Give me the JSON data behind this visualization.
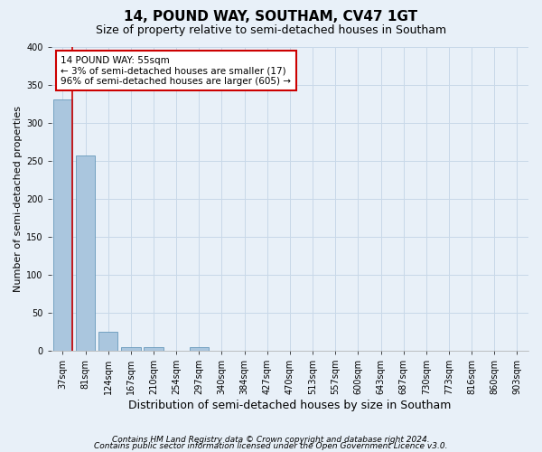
{
  "title": "14, POUND WAY, SOUTHAM, CV47 1GT",
  "subtitle": "Size of property relative to semi-detached houses in Southam",
  "xlabel": "Distribution of semi-detached houses by size in Southam",
  "ylabel": "Number of semi-detached properties",
  "footnote1": "Contains HM Land Registry data © Crown copyright and database right 2024.",
  "footnote2": "Contains public sector information licensed under the Open Government Licence v3.0.",
  "annotation_title": "14 POUND WAY: 55sqm",
  "annotation_line1": "← 3% of semi-detached houses are smaller (17)",
  "annotation_line2": "96% of semi-detached houses are larger (605) →",
  "bar_labels": [
    "37sqm",
    "81sqm",
    "124sqm",
    "167sqm",
    "210sqm",
    "254sqm",
    "297sqm",
    "340sqm",
    "384sqm",
    "427sqm",
    "470sqm",
    "513sqm",
    "557sqm",
    "600sqm",
    "643sqm",
    "687sqm",
    "730sqm",
    "773sqm",
    "816sqm",
    "860sqm",
    "903sqm"
  ],
  "bar_values": [
    330,
    257,
    25,
    5,
    5,
    0,
    5,
    0,
    0,
    0,
    0,
    0,
    0,
    0,
    0,
    0,
    0,
    0,
    0,
    0,
    0
  ],
  "bar_color": "#aac6de",
  "bar_edge_color": "#6699bb",
  "vline_x": 0.42,
  "ylim": [
    0,
    400
  ],
  "yticks": [
    0,
    50,
    100,
    150,
    200,
    250,
    300,
    350,
    400
  ],
  "grid_color": "#c8d8e8",
  "background_color": "#e8f0f8",
  "vline_color": "#cc0000",
  "box_color": "#cc0000",
  "title_fontsize": 11,
  "subtitle_fontsize": 9,
  "xlabel_fontsize": 9,
  "ylabel_fontsize": 8,
  "tick_fontsize": 7,
  "annotation_fontsize": 7.5,
  "footnote_fontsize": 6.5
}
